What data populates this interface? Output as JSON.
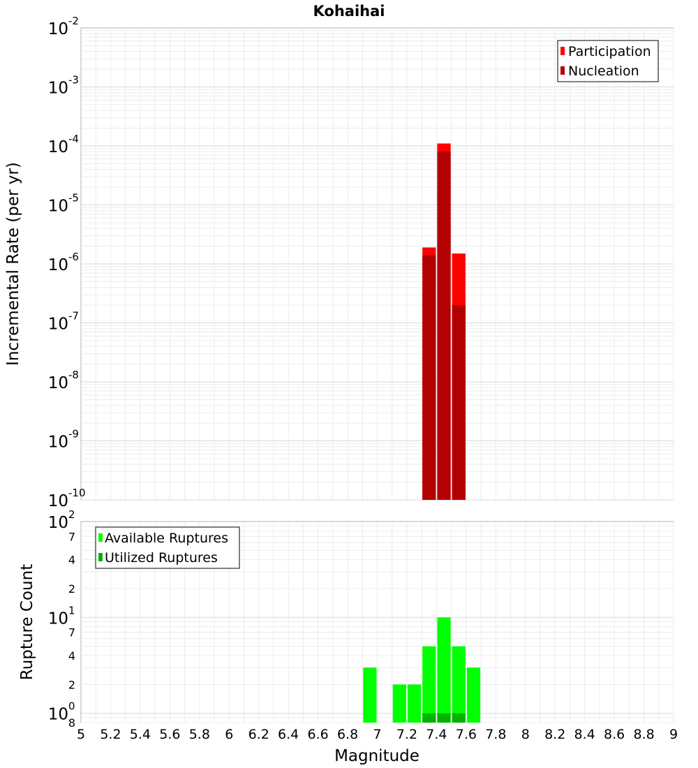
{
  "chart_data": [
    {
      "type": "bar",
      "title": "Kohaihai",
      "xlabel": "",
      "ylabel": "Incremental Rate (per yr)",
      "yscale": "log",
      "xlim": [
        5,
        9
      ],
      "ylim": [
        1e-10,
        0.01
      ],
      "grid": true,
      "legend_position": "top-right",
      "y_ticks": [
        {
          "base": "10",
          "exp": "-2"
        },
        {
          "base": "10",
          "exp": "-3"
        },
        {
          "base": "10",
          "exp": "-4"
        },
        {
          "base": "10",
          "exp": "-5"
        },
        {
          "base": "10",
          "exp": "-6"
        },
        {
          "base": "10",
          "exp": "-7"
        },
        {
          "base": "10",
          "exp": "-8"
        },
        {
          "base": "10",
          "exp": "-9"
        },
        {
          "base": "10",
          "exp": "-10"
        }
      ],
      "series": [
        {
          "name": "Participation",
          "color": "#ff0000",
          "x": [
            7.35,
            7.45,
            7.55
          ],
          "values": [
            1.9e-06,
            0.00011,
            1.5e-06
          ]
        },
        {
          "name": "Nucleation",
          "color": "#b30000",
          "x": [
            7.35,
            7.45,
            7.55
          ],
          "values": [
            1.4e-06,
            8e-05,
            2e-07
          ]
        }
      ]
    },
    {
      "type": "bar",
      "title": "",
      "xlabel": "Magnitude",
      "ylabel": "Rupture Count",
      "yscale": "log",
      "xlim": [
        5,
        9
      ],
      "ylim": [
        0.8,
        100
      ],
      "grid": true,
      "legend_position": "top-left",
      "x_ticks": [
        "5",
        "5.2",
        "5.4",
        "5.6",
        "5.8",
        "6",
        "6.2",
        "6.4",
        "6.6",
        "6.8",
        "7",
        "7.2",
        "7.4",
        "7.6",
        "7.8",
        "8",
        "8.2",
        "8.4",
        "8.6",
        "8.8",
        "9"
      ],
      "y_major_ticks": [
        {
          "base": "10",
          "exp": "2"
        },
        {
          "base": "10",
          "exp": "1"
        },
        {
          "base": "10",
          "exp": "0"
        }
      ],
      "y_minor_ticks": [
        "7",
        "4",
        "2",
        "7",
        "4",
        "2",
        "8"
      ],
      "series": [
        {
          "name": "Available Ruptures",
          "color": "#00ff00",
          "x": [
            6.95,
            7.15,
            7.25,
            7.35,
            7.45,
            7.55,
            7.65
          ],
          "values": [
            3,
            2,
            2,
            5,
            10,
            5,
            3
          ]
        },
        {
          "name": "Utilized Ruptures",
          "color": "#00b300",
          "x": [
            7.35,
            7.45,
            7.55
          ],
          "values": [
            1,
            1,
            1
          ]
        }
      ]
    }
  ]
}
